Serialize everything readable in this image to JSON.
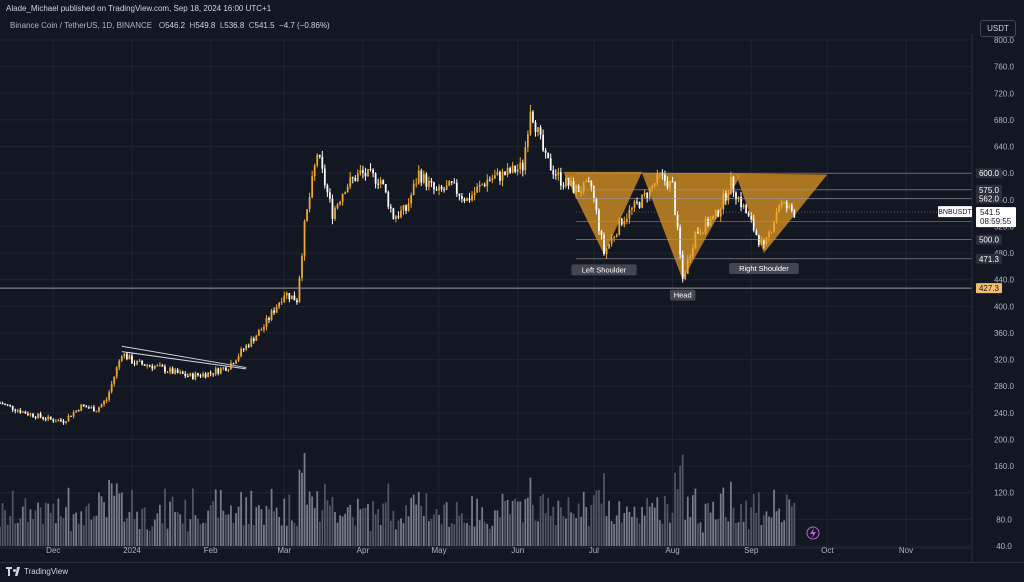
{
  "header": {
    "published": "Alade_Michael published on TradingView.com, Sep 18, 2024 16:00 UTC+1",
    "symbol": "Binance Coin / TetherUS, 1D, BINANCE",
    "ohlc": {
      "o_label": "O",
      "o": "546.2",
      "h_label": "H",
      "h": "549.8",
      "l_label": "L",
      "l": "536.8",
      "c_label": "C",
      "c": "541.5",
      "change": "−4.7 (−0.86%)"
    },
    "currency": "USDT"
  },
  "footer": {
    "brand": "TradingView"
  },
  "colors": {
    "bg": "#131722",
    "grid": "#1f2330",
    "pattern_fill": "#c8861e",
    "candle_up": "#f0a830",
    "candle_down": "#ffffff",
    "text": "#d1d4dc",
    "price_tag": "#ffffff"
  },
  "chart_data": {
    "type": "candlestick",
    "y_axis": {
      "min": 40,
      "max": 800,
      "ticks": [
        "800.0",
        "760.0",
        "720.0",
        "680.0",
        "640.0",
        "600.0",
        "560.0",
        "520.0",
        "480.0",
        "440.0",
        "400.0",
        "360.0",
        "320.0",
        "280.0",
        "240.0",
        "200.0",
        "160.0",
        "120.0",
        "80.0",
        "40.0"
      ]
    },
    "x_axis": {
      "labels": [
        "Dec",
        "2024",
        "Feb",
        "Mar",
        "Apr",
        "May",
        "Jun",
        "Jul",
        "Aug",
        "Sep",
        "Oct",
        "Nov"
      ]
    },
    "price_labels": [
      {
        "value": 600,
        "text": "600.0",
        "style": "dark"
      },
      {
        "value": 575,
        "text": "575.0",
        "style": "dark"
      },
      {
        "value": 562,
        "text": "562.0",
        "style": "dark"
      },
      {
        "value": 541.5,
        "text": "541.5",
        "style": "last"
      },
      {
        "value": 527,
        "text": "527.0",
        "style": "dark"
      },
      {
        "value": 500,
        "text": "500.0",
        "style": "dark"
      },
      {
        "value": 471.3,
        "text": "471.3",
        "style": "dark"
      },
      {
        "value": 427.3,
        "text": "427.3",
        "style": "highlight"
      }
    ],
    "last_price": {
      "symbol": "BNBUSDT",
      "price": "541.5",
      "countdown": "08:59:55"
    },
    "annotations": [
      {
        "text": "Left Shoulder",
        "date": "2024-07-05"
      },
      {
        "text": "Head",
        "date": "2024-08-05"
      },
      {
        "text": "Right Shoulder",
        "date": "2024-09-06"
      }
    ],
    "series_anchors": [
      [
        "2023-11-10",
        255
      ],
      [
        "2023-11-20",
        240
      ],
      [
        "2023-11-30",
        230
      ],
      [
        "2023-12-05",
        228
      ],
      [
        "2023-12-12",
        250
      ],
      [
        "2023-12-18",
        245
      ],
      [
        "2023-12-22",
        260
      ],
      [
        "2023-12-28",
        330
      ],
      [
        "2024-01-02",
        315
      ],
      [
        "2024-01-10",
        310
      ],
      [
        "2024-01-18",
        300
      ],
      [
        "2024-01-24",
        295
      ],
      [
        "2024-02-01",
        300
      ],
      [
        "2024-02-08",
        310
      ],
      [
        "2024-02-15",
        340
      ],
      [
        "2024-02-22",
        370
      ],
      [
        "2024-03-01",
        420
      ],
      [
        "2024-03-06",
        410
      ],
      [
        "2024-03-09",
        520
      ],
      [
        "2024-03-14",
        630
      ],
      [
        "2024-03-20",
        540
      ],
      [
        "2024-03-25",
        580
      ],
      [
        "2024-03-31",
        600
      ],
      [
        "2024-04-08",
        590
      ],
      [
        "2024-04-13",
        535
      ],
      [
        "2024-04-18",
        545
      ],
      [
        "2024-04-23",
        600
      ],
      [
        "2024-04-30",
        570
      ],
      [
        "2024-05-06",
        580
      ],
      [
        "2024-05-12",
        560
      ],
      [
        "2024-05-20",
        590
      ],
      [
        "2024-05-28",
        600
      ],
      [
        "2024-06-03",
        610
      ],
      [
        "2024-06-06",
        700
      ],
      [
        "2024-06-12",
        620
      ],
      [
        "2024-06-18",
        590
      ],
      [
        "2024-06-24",
        575
      ],
      [
        "2024-06-30",
        580
      ],
      [
        "2024-07-05",
        480
      ],
      [
        "2024-07-12",
        530
      ],
      [
        "2024-07-20",
        560
      ],
      [
        "2024-07-27",
        595
      ],
      [
        "2024-08-01",
        580
      ],
      [
        "2024-08-05",
        440
      ],
      [
        "2024-08-10",
        510
      ],
      [
        "2024-08-18",
        535
      ],
      [
        "2024-08-24",
        585
      ],
      [
        "2024-08-30",
        540
      ],
      [
        "2024-09-06",
        485
      ],
      [
        "2024-09-12",
        555
      ],
      [
        "2024-09-18",
        541.5
      ]
    ]
  }
}
